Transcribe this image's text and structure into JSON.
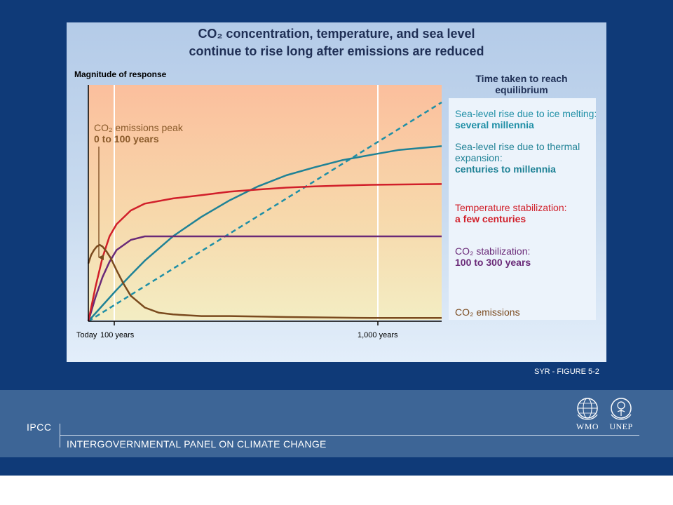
{
  "figure": {
    "title_line1": "CO₂ concentration, temperature, and sea level",
    "title_line2": "continue to rise long after emissions are reduced",
    "reference": "SYR - FIGURE 5-2"
  },
  "footer": {
    "ipcc": "IPCC",
    "org_name": "INTERGOVERNMENTAL PANEL ON CLIMATE CHANGE",
    "logos": [
      {
        "name": "wmo-logo",
        "label": "WMO"
      },
      {
        "name": "unep-logo",
        "label": "UNEP"
      }
    ]
  },
  "chart_data": {
    "type": "line",
    "ylabel": "Magnitude of response",
    "x_ticks": [
      "Today",
      "100 years",
      "1,000 years"
    ],
    "x_tick_values": [
      0,
      100,
      1000
    ],
    "xlim": [
      0,
      1250
    ],
    "ylim": [
      0,
      1
    ],
    "panel_heading": "Time taken to reach equilibrium",
    "emissions_peak": {
      "line1": "CO₂ emissions peak",
      "line2": "0 to 100 years"
    },
    "series": [
      {
        "key": "ice",
        "style": "dashed",
        "color": "#1f8fa6",
        "x": [
          0,
          250,
          500,
          750,
          1000,
          1250
        ],
        "y": [
          0,
          0.186,
          0.372,
          0.557,
          0.743,
          0.929
        ],
        "label1": "Sea-level rise due to ice melting:",
        "label2": "several millennia"
      },
      {
        "key": "thermal",
        "style": "solid",
        "color": "#1f8296",
        "x": [
          0,
          50,
          100,
          150,
          200,
          300,
          400,
          500,
          600,
          700,
          800,
          900,
          1000,
          1100,
          1250
        ],
        "y": [
          0,
          0.067,
          0.133,
          0.196,
          0.257,
          0.361,
          0.443,
          0.513,
          0.572,
          0.619,
          0.653,
          0.684,
          0.706,
          0.727,
          0.743
        ],
        "label1": "Sea-level rise due to thermal",
        "label1b": "expansion:",
        "label2": "centuries to millennia"
      },
      {
        "key": "temperature",
        "style": "solid",
        "color": "#d11f2a",
        "x": [
          0,
          25,
          50,
          75,
          100,
          150,
          200,
          300,
          400,
          500,
          600,
          700,
          800,
          900,
          1000,
          1250
        ],
        "y": [
          0,
          0.144,
          0.27,
          0.36,
          0.412,
          0.47,
          0.499,
          0.521,
          0.535,
          0.55,
          0.559,
          0.567,
          0.572,
          0.576,
          0.579,
          0.582
        ],
        "label1": "Temperature stabilization:",
        "label2": "a few centuries"
      },
      {
        "key": "co2",
        "style": "solid",
        "color": "#6a2a78",
        "x": [
          0,
          25,
          50,
          75,
          100,
          150,
          200,
          250,
          300,
          400,
          600,
          800,
          1000,
          1250
        ],
        "y": [
          0,
          0.101,
          0.187,
          0.252,
          0.302,
          0.345,
          0.36,
          0.36,
          0.36,
          0.36,
          0.36,
          0.36,
          0.36,
          0.36
        ],
        "label1": "CO₂ stabilization:",
        "label2": "100 to 300 years"
      },
      {
        "key": "emissions",
        "style": "solid",
        "color": "#7a4a1e",
        "x": [
          0,
          10,
          20,
          30,
          40,
          50,
          65,
          80,
          100,
          125,
          150,
          200,
          250,
          300,
          400,
          500,
          700,
          1000,
          1250
        ],
        "y": [
          0.245,
          0.281,
          0.302,
          0.317,
          0.324,
          0.317,
          0.295,
          0.266,
          0.216,
          0.158,
          0.108,
          0.058,
          0.036,
          0.029,
          0.022,
          0.022,
          0.018,
          0.014,
          0.014
        ],
        "label1": "CO₂ emissions",
        "label2": ""
      }
    ]
  }
}
